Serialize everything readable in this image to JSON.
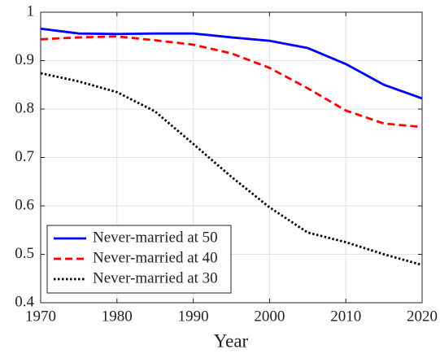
{
  "chart_data": {
    "type": "line",
    "xlabel": "Year",
    "x": [
      1970,
      1975,
      1980,
      1985,
      1990,
      1995,
      2000,
      2005,
      2010,
      2015,
      2020
    ],
    "series": [
      {
        "name": "Never-married at 50",
        "color": "#0000ff",
        "linestyle": "solid",
        "values": [
          0.966,
          0.956,
          0.955,
          0.956,
          0.956,
          0.948,
          0.941,
          0.926,
          0.893,
          0.85,
          0.822
        ]
      },
      {
        "name": "Never-married at 40",
        "color": "#ff0000",
        "linestyle": "dashed",
        "values": [
          0.944,
          0.948,
          0.95,
          0.942,
          0.933,
          0.915,
          0.885,
          0.843,
          0.797,
          0.77,
          0.763
        ]
      },
      {
        "name": "Never-married at 30",
        "color": "#000000",
        "linestyle": "dotted",
        "values": [
          0.874,
          0.857,
          0.835,
          0.795,
          0.728,
          0.66,
          0.597,
          0.545,
          0.525,
          0.5,
          0.478
        ]
      }
    ],
    "xlim": [
      1970,
      2020
    ],
    "xticks": [
      1970,
      1980,
      1990,
      2000,
      2010,
      2020
    ],
    "ylim": [
      0.4,
      1
    ],
    "yticks": [
      0.4,
      0.5,
      0.6,
      0.7,
      0.8,
      0.9,
      1
    ],
    "grid": true,
    "legend": "lower left"
  }
}
